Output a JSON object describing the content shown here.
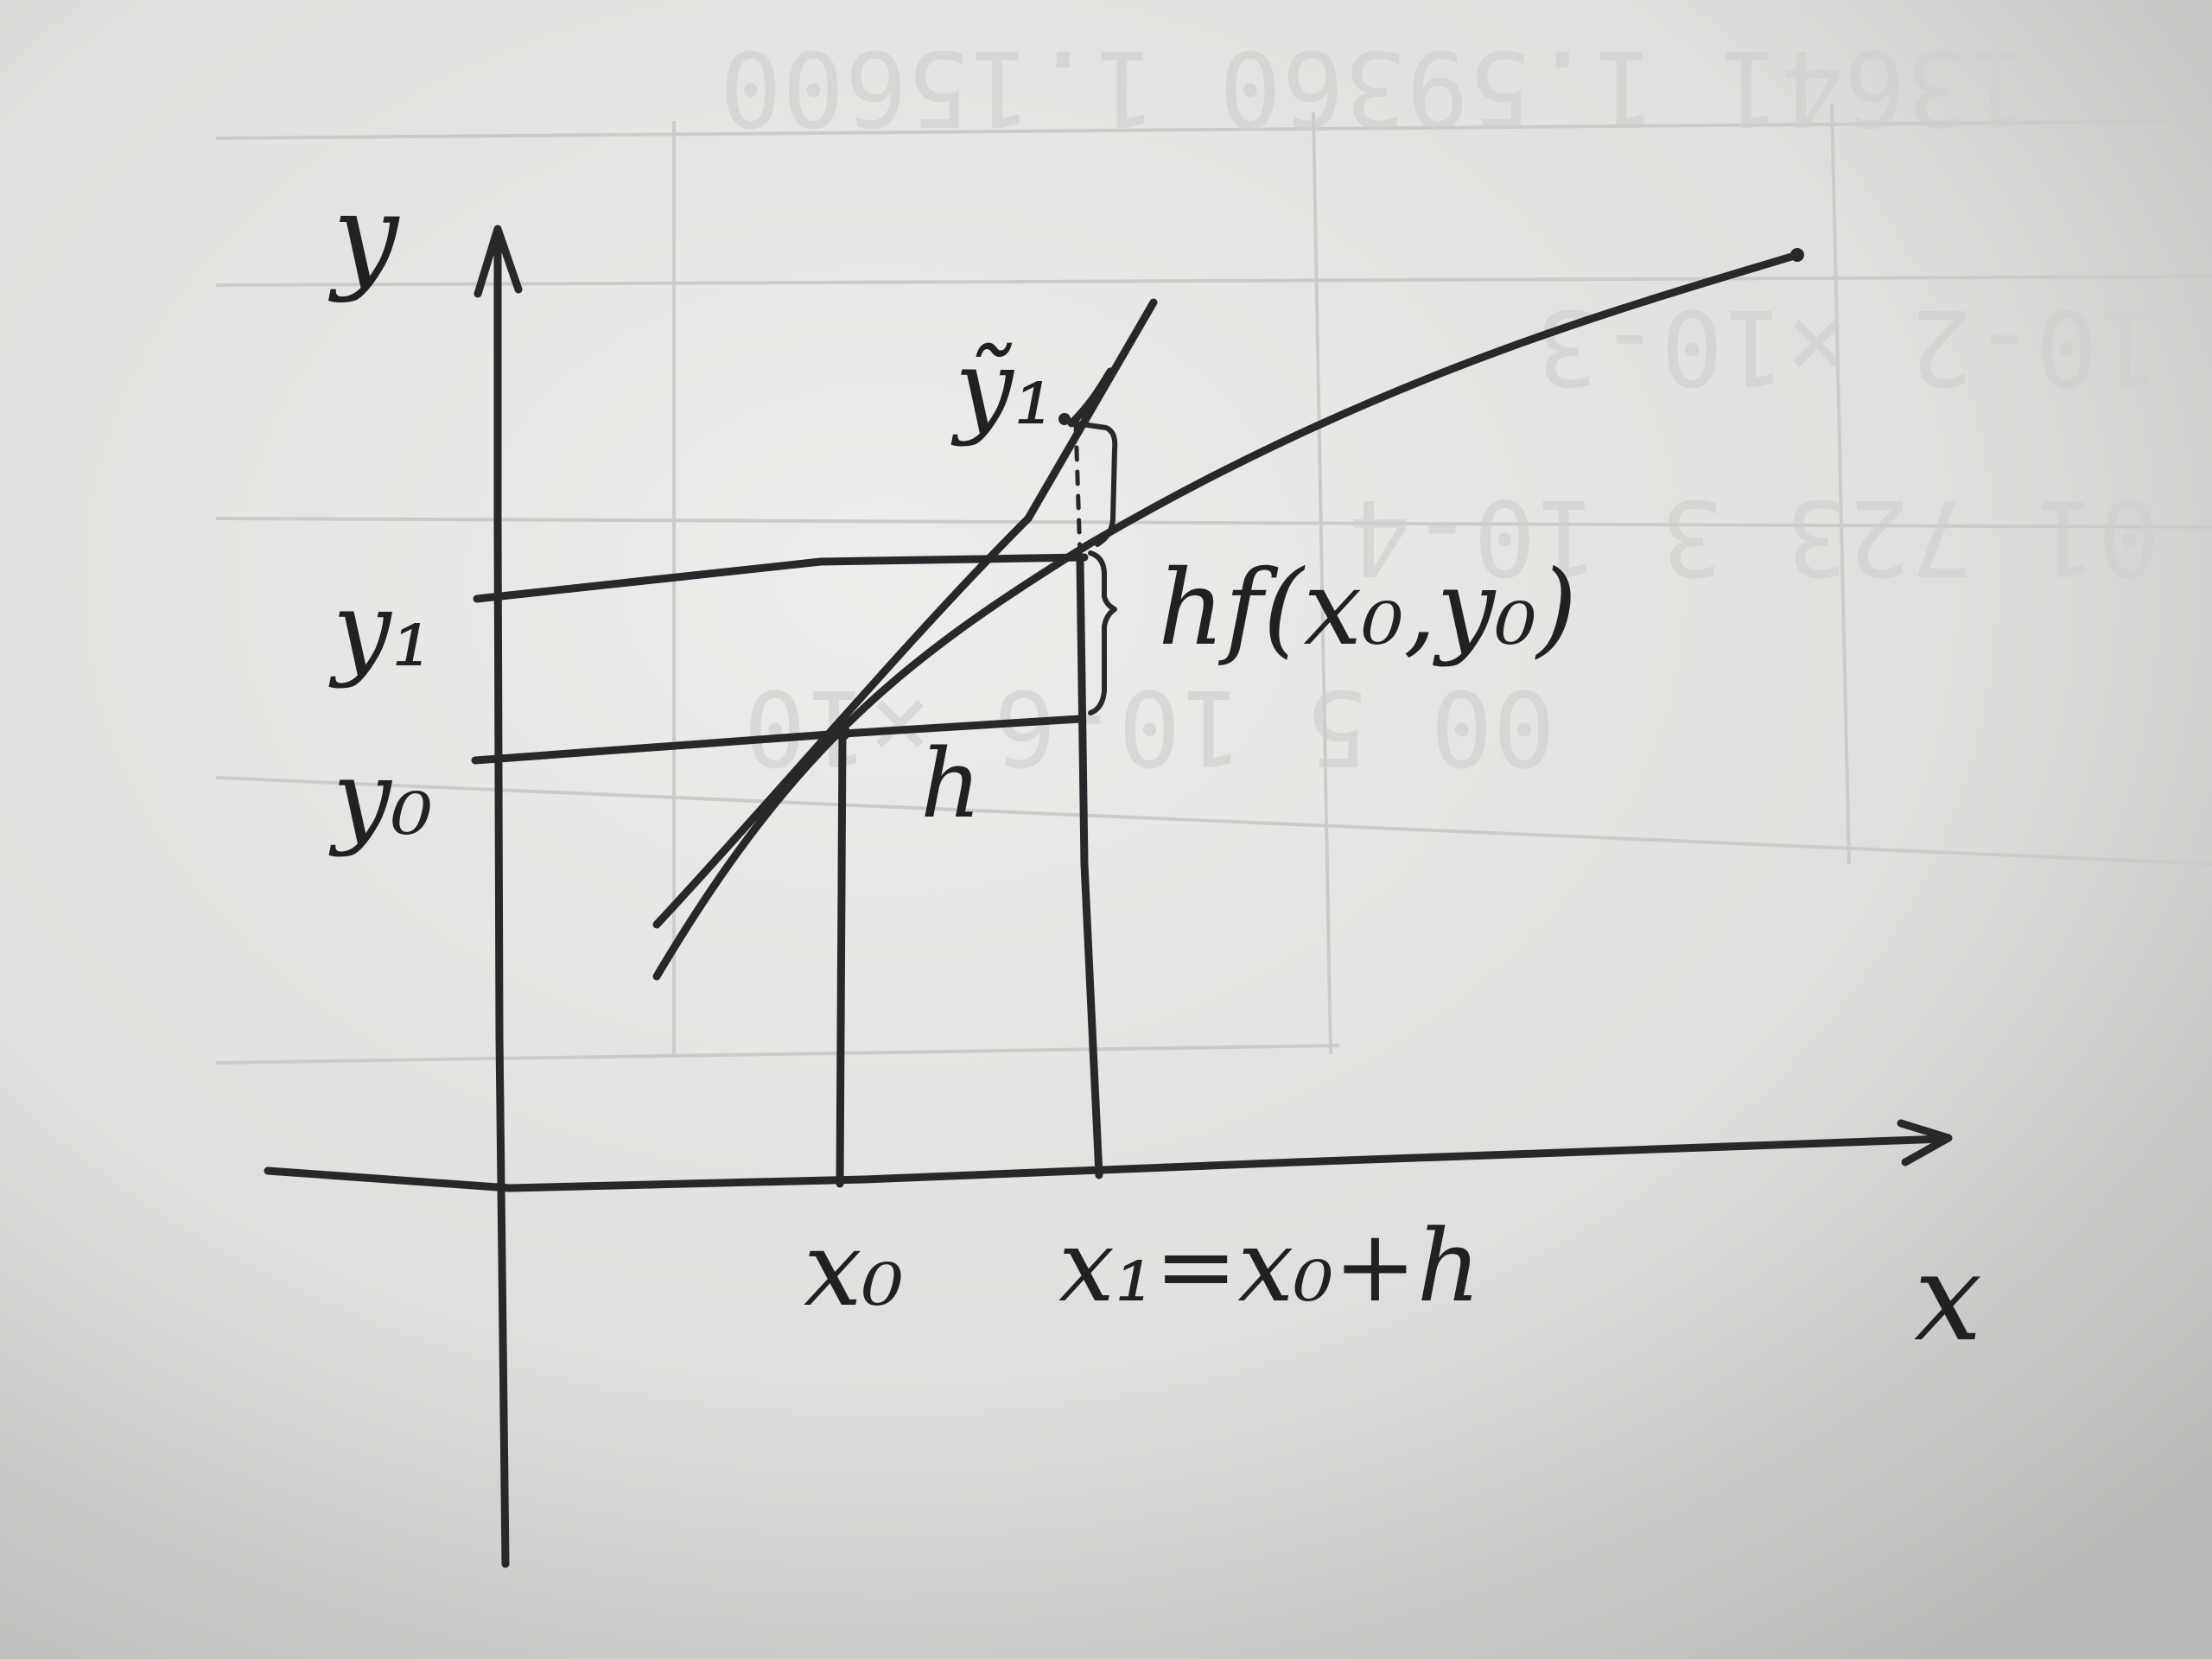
{
  "labels": {
    "y_axis": "y",
    "x_axis": "x",
    "y1_tilde": "ỹ₁",
    "y1": "y₁",
    "y0": "y₀",
    "step_height": "hf(x₀,y₀)",
    "h": "h",
    "x0": "x₀",
    "x1": "x₁=x₀+h"
  },
  "background_table": {
    "row1": "13641  1.59360  1.15600",
    "row2": "10-2      ×10-3",
    "row3": "01 723  3 10-4",
    "row4": "00 5   10-6   ×10"
  },
  "colors": {
    "ink": "#26282a",
    "paper": "#dcdedb"
  }
}
